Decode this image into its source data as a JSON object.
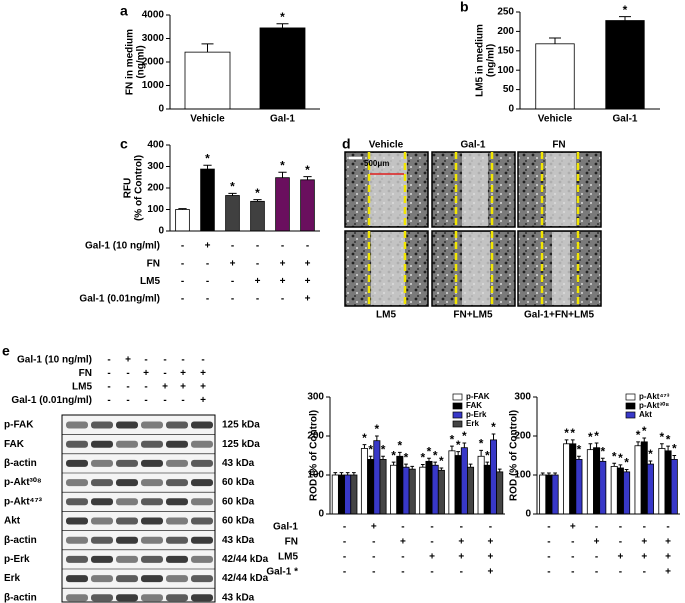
{
  "chart_data": [
    {
      "type": "bar",
      "panel_label": "a",
      "ylabel": [
        "FN in medium",
        "(ng/ml)"
      ],
      "categories": [
        "Vehicle",
        "Gal-1"
      ],
      "ylim": [
        0,
        4000
      ],
      "yticks": [
        0,
        1000,
        2000,
        3000,
        4000
      ],
      "series": [
        {
          "values": [
            2420,
            3450
          ],
          "errors": [
            350,
            180
          ],
          "colors": [
            "#ffffff",
            "#000000"
          ],
          "markers": [
            null,
            "*"
          ]
        }
      ]
    },
    {
      "type": "bar",
      "panel_label": "b",
      "ylabel": [
        "LM5 in medium",
        "(ng/ml)"
      ],
      "categories": [
        "Vehicle",
        "Gal-1"
      ],
      "ylim": [
        0,
        250
      ],
      "yticks": [
        0,
        50,
        100,
        150,
        200,
        250
      ],
      "series": [
        {
          "values": [
            168,
            228
          ],
          "errors": [
            15,
            10
          ],
          "colors": [
            "#ffffff",
            "#000000"
          ],
          "markers": [
            null,
            "*"
          ]
        }
      ]
    },
    {
      "type": "bar",
      "panel_label": "c",
      "ylabel": [
        "RFU",
        "(% of Control)"
      ],
      "ylim": [
        0,
        400
      ],
      "yticks": [
        0,
        100,
        200,
        300,
        400
      ],
      "series": [
        {
          "values": [
            100,
            288,
            165,
            138,
            248,
            238
          ],
          "errors": [
            4,
            18,
            10,
            8,
            25,
            15
          ],
          "colors": [
            "#ffffff",
            "#000000",
            "#404040",
            "#404040",
            "#6a0f5e",
            "#6a0f5e"
          ],
          "markers": [
            null,
            "*",
            "*",
            "*",
            "*",
            "*"
          ]
        }
      ],
      "conditions": [
        {
          "label": "Gal-1 (10 ng/ml)",
          "signs": [
            "-",
            "+",
            "-",
            "-",
            "-",
            "-"
          ]
        },
        {
          "label": "FN",
          "signs": [
            "-",
            "-",
            "+",
            "-",
            "+",
            "+"
          ]
        },
        {
          "label": "LM5",
          "signs": [
            "-",
            "-",
            "-",
            "+",
            "+",
            "+"
          ]
        },
        {
          "label": "Gal-1 (0.01ng/ml)",
          "signs": [
            "-",
            "-",
            "-",
            "-",
            "-",
            "+"
          ]
        }
      ]
    },
    {
      "type": "bar",
      "ylabel": [
        "ROD (% of Control)"
      ],
      "ylim": [
        0,
        300
      ],
      "yticks": [
        0,
        100,
        200,
        300
      ],
      "series": [
        {
          "name": "p-FAK",
          "color": "#ffffff",
          "values": [
            100,
            168,
            125,
            120,
            162,
            148
          ],
          "errors": [
            6,
            10,
            8,
            7,
            12,
            15
          ],
          "markers": [
            null,
            "*",
            "*",
            "*",
            "*",
            "*"
          ]
        },
        {
          "name": "FAK",
          "color": "#000000",
          "values": [
            100,
            140,
            148,
            135,
            150,
            125
          ],
          "errors": [
            6,
            8,
            10,
            8,
            10,
            8
          ],
          "markers": [
            null,
            "*",
            "*",
            "*",
            "*",
            "*"
          ]
        },
        {
          "name": "p-Erk",
          "color": "#3838c8",
          "values": [
            100,
            188,
            120,
            125,
            170,
            190
          ],
          "errors": [
            6,
            12,
            8,
            8,
            12,
            15
          ],
          "markers": [
            null,
            "*",
            "*",
            "*",
            "*",
            "*"
          ]
        },
        {
          "name": "Erk",
          "color": "#444444",
          "values": [
            100,
            140,
            115,
            112,
            120,
            108
          ],
          "errors": [
            6,
            8,
            7,
            6,
            8,
            7
          ],
          "markers": [
            null,
            "*",
            null,
            "*",
            null,
            null
          ]
        }
      ],
      "conditions": [
        {
          "label": "Gal-1",
          "signs": [
            "-",
            "+",
            "-",
            "-",
            "-",
            "-"
          ]
        },
        {
          "label": "FN",
          "signs": [
            "-",
            "-",
            "+",
            "-",
            "+",
            "+"
          ]
        },
        {
          "label": "LM5",
          "signs": [
            "-",
            "-",
            "-",
            "+",
            "+",
            "+"
          ]
        },
        {
          "label": "Gal-1 *",
          "signs": [
            "-",
            "-",
            "-",
            "-",
            "-",
            "+"
          ]
        }
      ]
    },
    {
      "type": "bar",
      "ylabel": [
        "ROD (% of Control)"
      ],
      "ylim": [
        0,
        300
      ],
      "yticks": [
        0,
        100,
        200,
        300
      ],
      "series": [
        {
          "name": "p-Akt⁴⁷³",
          "color": "#ffffff",
          "values": [
            100,
            180,
            165,
            122,
            175,
            168
          ],
          "errors": [
            5,
            10,
            15,
            8,
            10,
            12
          ],
          "markers": [
            null,
            "*",
            "*",
            "*",
            "*",
            "*"
          ]
        },
        {
          "name": "p-Akt³⁰⁸",
          "color": "#000000",
          "values": [
            100,
            180,
            170,
            118,
            185,
            162
          ],
          "errors": [
            5,
            10,
            12,
            8,
            10,
            12
          ],
          "markers": [
            null,
            "*",
            "*",
            "*",
            "*",
            "*"
          ]
        },
        {
          "name": "Akt",
          "color": "#3838c8",
          "values": [
            100,
            140,
            135,
            108,
            128,
            140
          ],
          "errors": [
            5,
            8,
            8,
            6,
            8,
            10
          ],
          "markers": [
            null,
            "*",
            "*",
            "*",
            "*",
            "*"
          ]
        }
      ],
      "conditions": [
        {
          "signs": [
            "-",
            "+",
            "-",
            "-",
            "-",
            "-"
          ]
        },
        {
          "signs": [
            "-",
            "-",
            "+",
            "-",
            "+",
            "+"
          ]
        },
        {
          "signs": [
            "-",
            "-",
            "-",
            "+",
            "+",
            "+"
          ]
        },
        {
          "signs": [
            "-",
            "-",
            "-",
            "-",
            "-",
            "+"
          ]
        }
      ]
    }
  ],
  "micrographs": {
    "panel_label": "d",
    "labels": [
      "Vehicle",
      "Gal-1",
      "FN",
      "LM5",
      "FN+LM5",
      "Gal-1+FN+LM5"
    ],
    "scale_bar": "500μm"
  },
  "blot": {
    "panel_label": "e",
    "conditions": [
      {
        "label": "Gal-1 (10 ng/ml)",
        "signs": [
          "-",
          "+",
          "-",
          "-",
          "-",
          "-"
        ]
      },
      {
        "label": "FN",
        "signs": [
          "-",
          "-",
          "+",
          "-",
          "+",
          "+"
        ]
      },
      {
        "label": "LM5",
        "signs": [
          "-",
          "-",
          "-",
          "+",
          "+",
          "+"
        ]
      },
      {
        "label": "Gal-1 (0.01ng/ml)",
        "signs": [
          "-",
          "-",
          "-",
          "-",
          "-",
          "+"
        ]
      }
    ],
    "bands": [
      {
        "label": "p-FAK",
        "size": "125 kDa"
      },
      {
        "label": "FAK",
        "size": "125 kDa"
      },
      {
        "label": "β-actin",
        "size": "43 kDa"
      },
      {
        "label": "p-Akt³⁰⁸",
        "size": "60 kDa"
      },
      {
        "label": "p-Akt⁴⁷³",
        "size": "60 kDa"
      },
      {
        "label": "Akt",
        "size": "60 kDa"
      },
      {
        "label": "β-actin",
        "size": "43 kDa"
      },
      {
        "label": "p-Erk",
        "size": "42/44 kDa"
      },
      {
        "label": "Erk",
        "size": "42/44 kDa"
      },
      {
        "label": "β-actin",
        "size": "43 kDa"
      }
    ]
  }
}
